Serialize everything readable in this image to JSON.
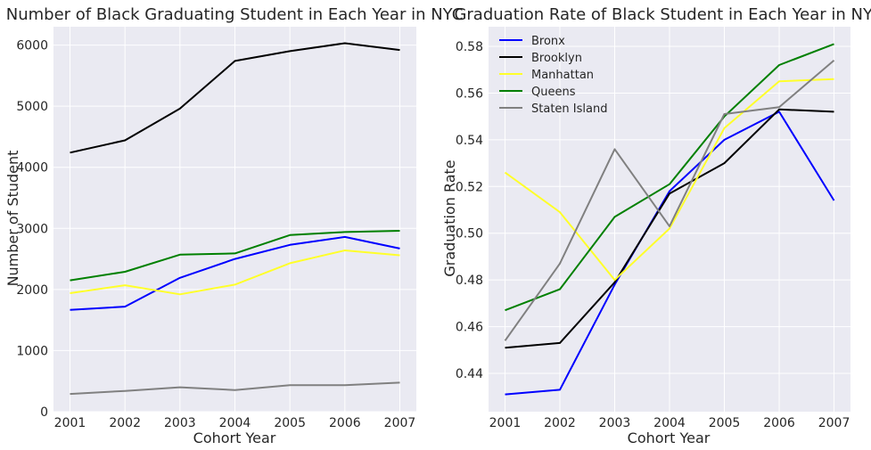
{
  "chart_data": [
    {
      "type": "line",
      "title": "Number of Black Graduating Student in Each Year in NYC",
      "xlabel": "Cohort Year",
      "ylabel": "Number of Student",
      "categories": [
        "2001",
        "2002",
        "2003",
        "2004",
        "2005",
        "2006",
        "2007"
      ],
      "ylim": [
        0,
        6300
      ],
      "yticks": [
        0,
        1000,
        2000,
        3000,
        4000,
        5000,
        6000
      ],
      "yticklabels": [
        "0",
        "1000",
        "2000",
        "3000",
        "4000",
        "5000",
        "6000"
      ],
      "grid": true,
      "legend": null,
      "series": [
        {
          "color": "#0000ff",
          "values": [
            1665,
            1720,
            2190,
            2500,
            2730,
            2860,
            2670
          ]
        },
        {
          "color": "#000000",
          "values": [
            4240,
            4440,
            4960,
            5740,
            5900,
            6030,
            5920
          ]
        },
        {
          "color": "#ffff2a",
          "values": [
            1940,
            2070,
            1920,
            2080,
            2430,
            2640,
            2560
          ]
        },
        {
          "color": "#008000",
          "values": [
            2150,
            2290,
            2570,
            2590,
            2890,
            2940,
            2960
          ]
        },
        {
          "color": "#808080",
          "values": [
            290,
            340,
            400,
            355,
            435,
            435,
            475
          ]
        }
      ]
    },
    {
      "type": "line",
      "title": "Graduation Rate of Black Student in Each Year in NYC",
      "xlabel": "Cohort Year",
      "ylabel": "Graduation Rate",
      "categories": [
        "2001",
        "2002",
        "2003",
        "2004",
        "2005",
        "2006",
        "2007"
      ],
      "ylim": [
        0.4236,
        0.5884
      ],
      "yticks": [
        0.44,
        0.46,
        0.48,
        0.5,
        0.52,
        0.54,
        0.56,
        0.58
      ],
      "yticklabels": [
        "0.44",
        "0.46",
        "0.48",
        "0.50",
        "0.52",
        "0.54",
        "0.56",
        "0.58"
      ],
      "grid": true,
      "legend": "top-left",
      "series": [
        {
          "name": "Bronx",
          "color": "#0000ff",
          "values": [
            0.431,
            0.433,
            0.478,
            0.518,
            0.54,
            0.552,
            0.514
          ]
        },
        {
          "name": "Brooklyn",
          "color": "#000000",
          "values": [
            0.451,
            0.453,
            0.479,
            0.517,
            0.53,
            0.553,
            0.552
          ]
        },
        {
          "name": "Manhattan",
          "color": "#ffff2a",
          "values": [
            0.526,
            0.509,
            0.48,
            0.502,
            0.545,
            0.565,
            0.566
          ]
        },
        {
          "name": "Queens",
          "color": "#008000",
          "values": [
            0.467,
            0.476,
            0.507,
            0.521,
            0.55,
            0.572,
            0.581
          ]
        },
        {
          "name": "Staten Island",
          "color": "#808080",
          "values": [
            0.454,
            0.487,
            0.536,
            0.503,
            0.551,
            0.554,
            0.574
          ]
        }
      ]
    }
  ]
}
